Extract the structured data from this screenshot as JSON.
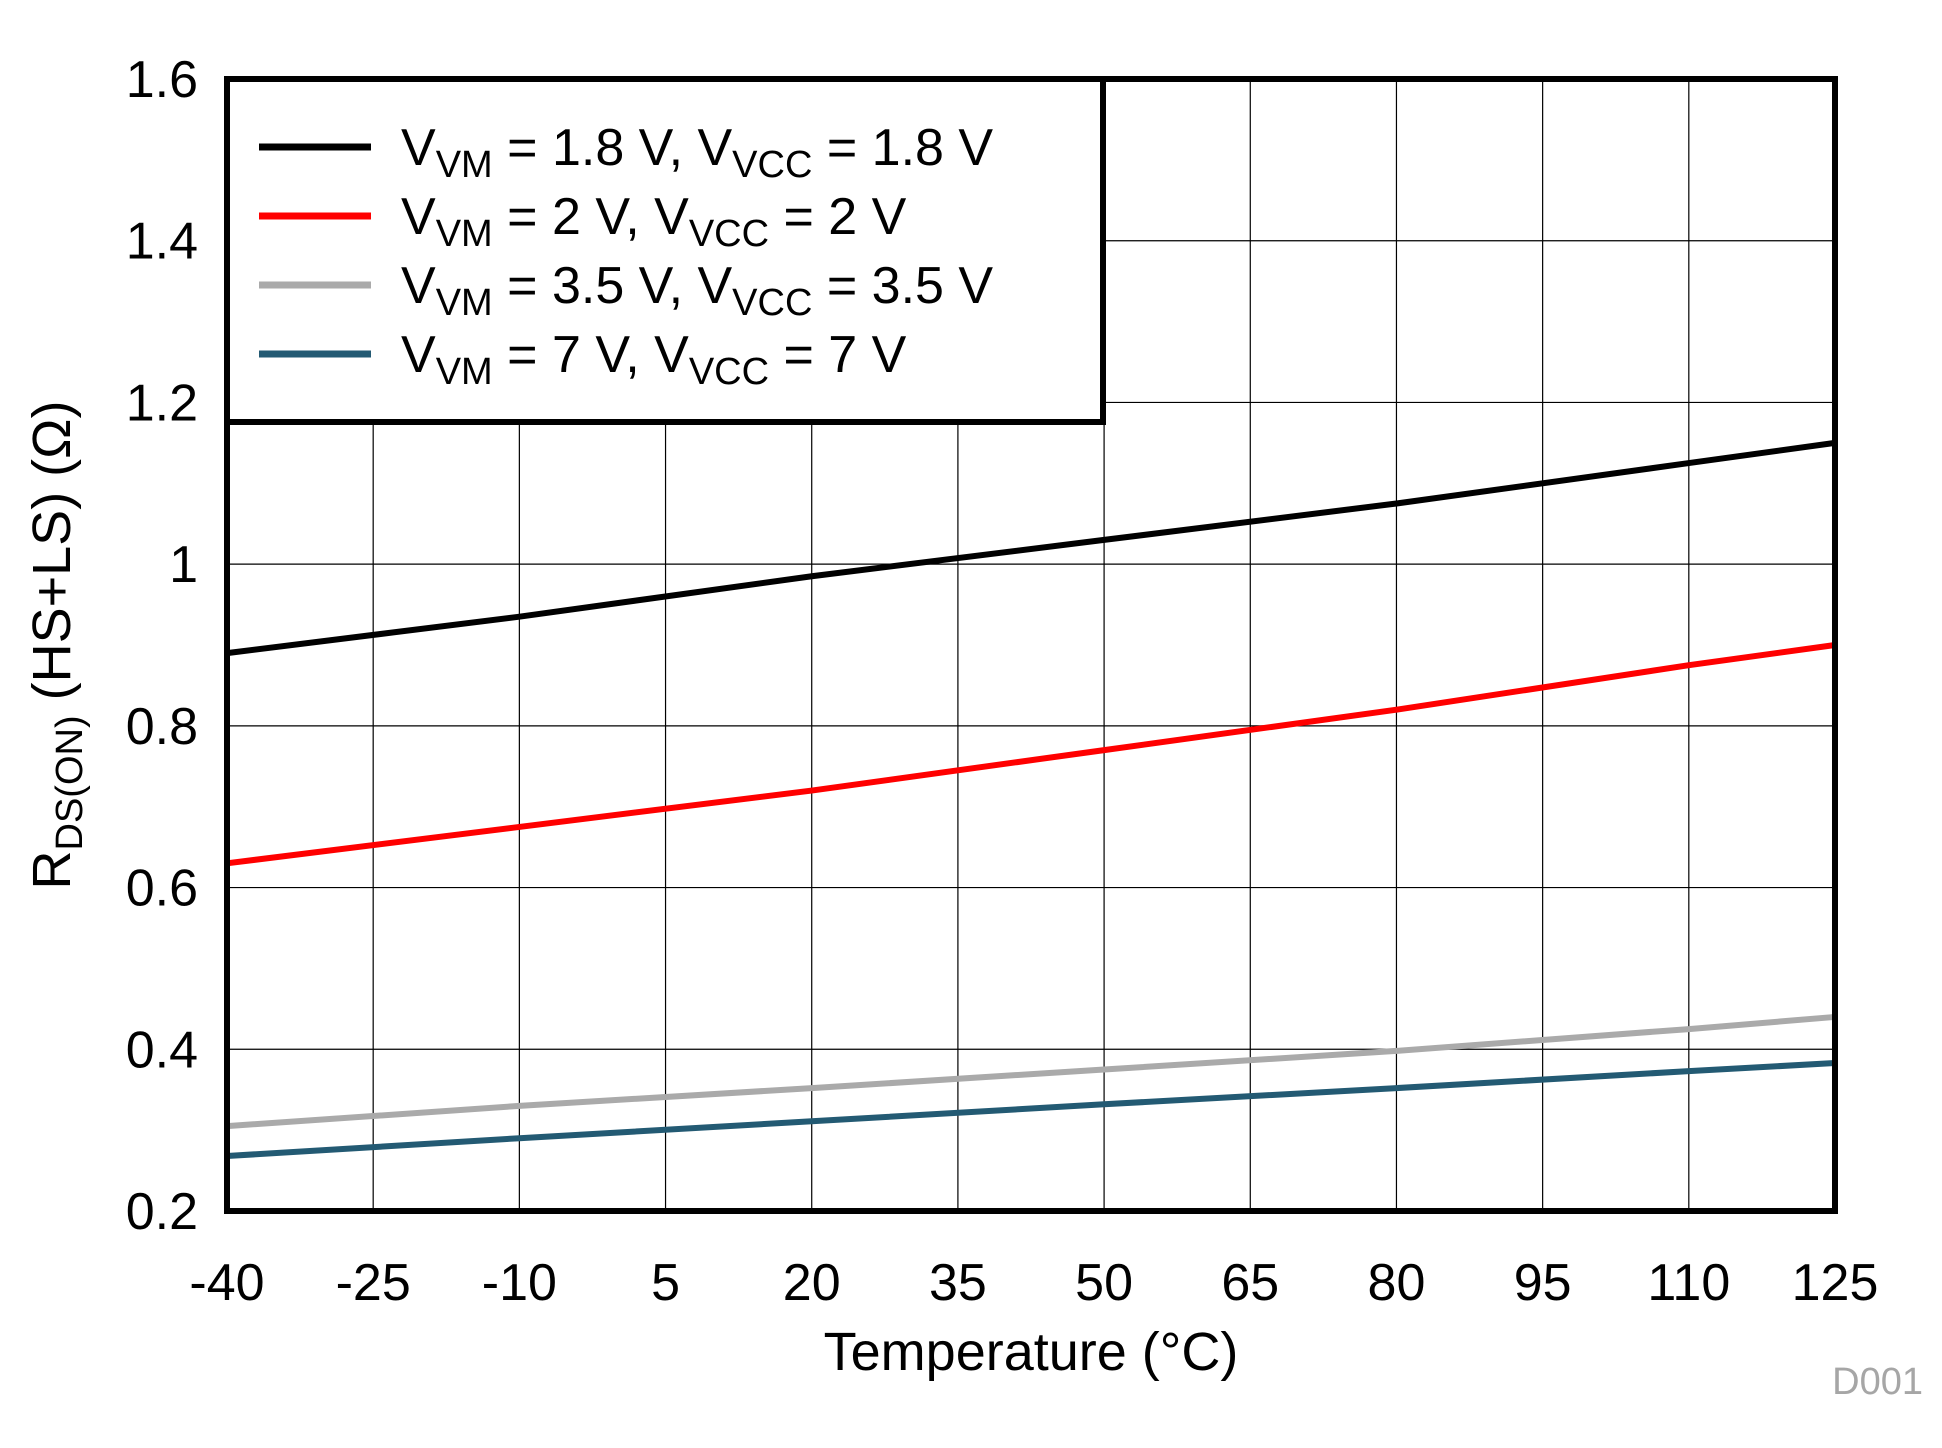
{
  "chart_data": {
    "type": "line",
    "title": "",
    "xlabel": "Temperature (°C)",
    "ylabel": {
      "main": "R",
      "sub": "DS(ON)",
      "rest": " (HS+LS) (Ω)"
    },
    "xlim": [
      -40,
      125
    ],
    "ylim": [
      0.2,
      1.6
    ],
    "xticks": [
      "-40",
      "-25",
      "-10",
      "5",
      "20",
      "35",
      "50",
      "65",
      "80",
      "95",
      "110",
      "125"
    ],
    "yticks": [
      "0.2",
      "0.4",
      "0.6",
      "0.8",
      "1",
      "1.2",
      "1.4",
      "1.6"
    ],
    "grid": true,
    "legend_position": "top-left",
    "x": [
      -40,
      -10,
      20,
      50,
      80,
      110,
      125
    ],
    "series": [
      {
        "name": "VVM = 1.8 V, VVCC = 1.8 V",
        "label_parts": [
          "V",
          "VM",
          " = 1.8 V, V",
          "VCC",
          " = 1.8 V"
        ],
        "color": "#000000",
        "values": [
          0.89,
          0.935,
          0.985,
          1.03,
          1.075,
          1.125,
          1.15
        ]
      },
      {
        "name": "VVM = 2 V, VVCC = 2 V",
        "label_parts": [
          "V",
          "VM",
          " = 2 V, V",
          "VCC",
          " = 2 V"
        ],
        "color": "#ff0000",
        "values": [
          0.63,
          0.675,
          0.72,
          0.77,
          0.82,
          0.875,
          0.9
        ]
      },
      {
        "name": "VVM = 3.5 V, VVCC = 3.5 V",
        "label_parts": [
          "V",
          "VM",
          " = 3.5 V, V",
          "VCC",
          " = 3.5 V"
        ],
        "color": "#aaaaaa",
        "values": [
          0.305,
          0.33,
          0.352,
          0.375,
          0.398,
          0.425,
          0.44
        ]
      },
      {
        "name": "VVM = 7 V, VVCC = 7 V",
        "label_parts": [
          "V",
          "VM",
          " = 7 V, V",
          "VCC",
          " = 7 V"
        ],
        "color": "#235a73",
        "values": [
          0.268,
          0.29,
          0.311,
          0.332,
          0.352,
          0.373,
          0.383
        ]
      }
    ],
    "annotation": "D001"
  }
}
